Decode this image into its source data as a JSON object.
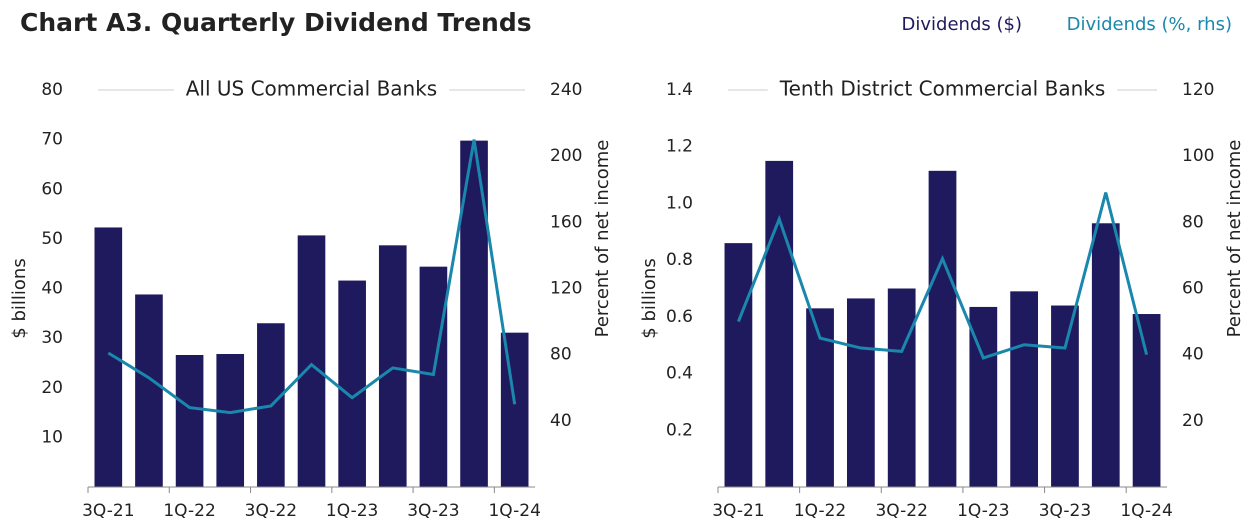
{
  "title": "Chart A3. Quarterly Dividend Trends",
  "chart_data": [
    {
      "type": "bar-line",
      "title": "All US Commercial Banks",
      "categories": [
        "3Q-21",
        null,
        "1Q-22",
        null,
        "3Q-22",
        null,
        "1Q-23",
        null,
        "3Q-23",
        null,
        "1Q-24"
      ],
      "series": [
        {
          "name": "Dividends ($)",
          "color": "#1f1a5e",
          "values": [
            52.3,
            38.8,
            26.6,
            26.8,
            33,
            50.7,
            41.6,
            48.7,
            44.4,
            69.8,
            31.1
          ]
        },
        {
          "name": "Dividends (%, rhs)",
          "color": "#1a87ad",
          "axis": "y2",
          "values": [
            81,
            66,
            48,
            45,
            49,
            74,
            54,
            72,
            68,
            210,
            50
          ]
        }
      ],
      "ylabel": "$ billions",
      "y2label": "Percent of net income",
      "ylim": [
        0,
        80
      ],
      "yticks": [
        10,
        20,
        30,
        40,
        50,
        60,
        70,
        80
      ],
      "y2lim": [
        0,
        240
      ],
      "y2ticks": [
        40,
        80,
        120,
        160,
        200,
        240
      ]
    },
    {
      "type": "bar-line",
      "title": "Tenth District Commercial Banks",
      "categories": [
        "3Q-21",
        null,
        "1Q-22",
        null,
        "3Q-22",
        null,
        "1Q-23",
        null,
        "3Q-23",
        null,
        "1Q-24"
      ],
      "series": [
        {
          "color": "#1f1a5e",
          "values": [
            0.86,
            1.15,
            0.63,
            0.665,
            0.7,
            1.115,
            0.635,
            0.69,
            0.64,
            0.93,
            0.61
          ]
        },
        {
          "color": "#1a87ad",
          "axis": "y2",
          "values": [
            50,
            81,
            45,
            42,
            41,
            69,
            39,
            43,
            42,
            89,
            40
          ]
        }
      ],
      "ylabel": "$ billions",
      "y2label": "Percent of net income",
      "ylim": [
        0,
        1.4
      ],
      "yticks": [
        0.2,
        0.4,
        0.6,
        0.8,
        {
          "value": 1,
          "label": "1.0"
        },
        1.2,
        1.4
      ],
      "y2lim": [
        0,
        120
      ],
      "y2ticks": [
        20,
        40,
        60,
        80,
        100,
        120
      ]
    }
  ]
}
